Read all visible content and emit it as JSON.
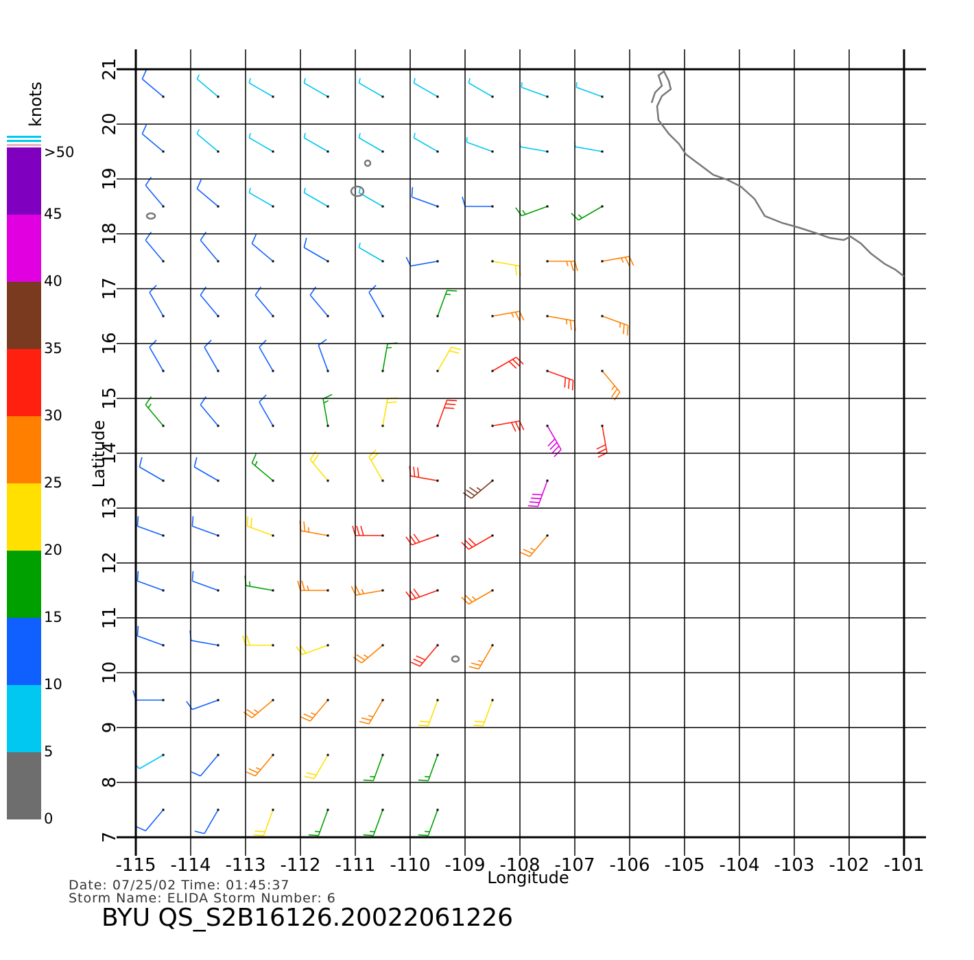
{
  "map": {
    "xlabel": "Longitude",
    "ylabel": "Latitude",
    "xticks": [
      -115,
      -114,
      -113,
      -112,
      -111,
      -110,
      -109,
      -108,
      -107,
      -106,
      -105,
      -104,
      -103,
      -102,
      -101
    ],
    "yticks": [
      7,
      8,
      9,
      10,
      11,
      12,
      13,
      14,
      15,
      16,
      17,
      18,
      19,
      20,
      21
    ],
    "xlim": [
      -115,
      -101
    ],
    "ylim": [
      7,
      21
    ],
    "colorbar": {
      "title": "knots",
      "lim": [
        0,
        50
      ],
      "ticks": [
        0,
        5,
        10,
        15,
        20,
        25,
        30,
        35,
        40,
        45,
        {
          "value": 50,
          "label": ">50"
        }
      ],
      "colors": [
        "#6e6e6e",
        "#00c8f0",
        "#1060ff",
        "#00a000",
        "#ffe000",
        "#ff8000",
        "#ff2010",
        "#7a3a20",
        "#e000e0",
        "#8000c0"
      ]
    },
    "wind": {
      "lon": [
        -114.5,
        -113.5,
        -112.5,
        -111.5,
        -110.5,
        -109.5,
        -108.5,
        -107.5,
        -106.5
      ],
      "lat": [
        20.5,
        19.5,
        18.5,
        17.5,
        16.5,
        15.5,
        14.5,
        13.5,
        12.5,
        11.5,
        10.5,
        9.5,
        8.5,
        7.5
      ],
      "speed": [
        [
          10,
          8,
          7,
          7,
          9,
          9,
          8,
          7,
          7
        ],
        [
          11,
          9,
          7,
          7,
          8,
          8,
          7,
          8,
          9
        ],
        [
          12,
          11,
          9,
          8,
          8,
          10,
          13,
          17,
          16
        ],
        [
          12,
          12,
          11,
          10,
          9,
          12,
          22,
          25,
          25
        ],
        [
          12,
          11,
          12,
          12,
          13,
          18,
          25,
          27,
          26
        ],
        [
          14,
          12,
          12,
          14,
          18,
          24,
          30,
          30,
          28
        ],
        [
          16,
          14,
          13,
          16,
          22,
          30,
          32,
          40,
          33
        ],
        [
          12,
          14,
          18,
          20,
          24,
          30,
          36,
          40,
          null
        ],
        [
          11,
          12,
          20,
          28,
          30,
          30,
          30,
          28,
          null
        ],
        [
          10,
          12,
          18,
          25,
          28,
          30,
          28,
          null,
          null
        ],
        [
          10,
          12,
          20,
          24,
          28,
          30,
          25,
          null,
          null
        ],
        [
          10,
          12,
          28,
          28,
          28,
          22,
          22,
          null,
          null
        ],
        [
          9,
          14,
          28,
          22,
          18,
          18,
          null,
          null,
          null
        ],
        [
          10,
          14,
          24,
          18,
          17,
          17,
          null,
          null,
          null
        ]
      ],
      "direction": [
        [
          310,
          310,
          300,
          300,
          300,
          300,
          300,
          290,
          290
        ],
        [
          310,
          310,
          300,
          300,
          300,
          300,
          290,
          280,
          280
        ],
        [
          320,
          310,
          300,
          300,
          300,
          290,
          270,
          250,
          240
        ],
        [
          320,
          320,
          310,
          300,
          300,
          260,
          100,
          90,
          80
        ],
        [
          330,
          320,
          320,
          320,
          330,
          20,
          80,
          100,
          110
        ],
        [
          330,
          330,
          330,
          340,
          10,
          30,
          60,
          110,
          140
        ],
        [
          320,
          320,
          330,
          350,
          10,
          20,
          80,
          150,
          170
        ],
        [
          300,
          300,
          310,
          320,
          330,
          280,
          230,
          200,
          null
        ],
        [
          290,
          290,
          290,
          280,
          270,
          250,
          240,
          220,
          null
        ],
        [
          290,
          290,
          280,
          270,
          260,
          250,
          240,
          null,
          null
        ],
        [
          290,
          280,
          270,
          250,
          230,
          220,
          210,
          null,
          null
        ],
        [
          270,
          250,
          230,
          220,
          210,
          200,
          200,
          null,
          null
        ],
        [
          240,
          220,
          220,
          210,
          200,
          200,
          null,
          null,
          null
        ],
        [
          220,
          210,
          200,
          200,
          200,
          200,
          null,
          null,
          null
        ]
      ]
    },
    "info": {
      "line1": "Date:  07/25/02   Time:  01:45:37",
      "line2": "Storm  Name:  ELIDA    Storm  Number:  6",
      "file": "BYU  QS_S2B16126.20022061226"
    }
  }
}
